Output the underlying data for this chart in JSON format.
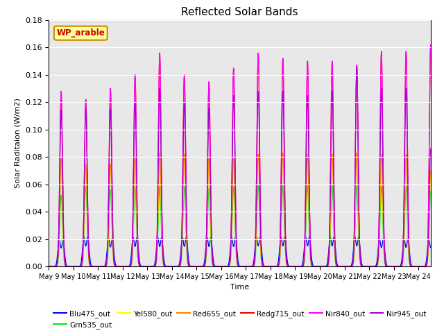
{
  "title": "Reflected Solar Bands",
  "xlabel": "Time",
  "ylabel": "Solar Raditaion (W/m2)",
  "ylim": [
    0,
    0.18
  ],
  "annotation_text": "WP_arable",
  "annotation_bg": "#ffff99",
  "annotation_border": "#cc8800",
  "num_days": 16,
  "sigma": 0.055,
  "series": [
    {
      "label": "Blu475_out",
      "color": "#0000ff",
      "peaks": [
        0.035,
        0.039,
        0.037,
        0.038,
        0.038,
        0.038,
        0.038,
        0.038,
        0.039,
        0.039,
        0.039,
        0.039,
        0.039,
        0.036,
        0.036,
        0.036
      ],
      "double_hump": true
    },
    {
      "label": "Grn535_out",
      "color": "#00ee00",
      "peaks": [
        0.052,
        0.058,
        0.056,
        0.058,
        0.058,
        0.058,
        0.057,
        0.058,
        0.059,
        0.059,
        0.059,
        0.059,
        0.059,
        0.058,
        0.058,
        0.055
      ],
      "double_hump": false
    },
    {
      "label": "Yel580_out",
      "color": "#ffff00",
      "peaks": [
        0.075,
        0.073,
        0.072,
        0.08,
        0.083,
        0.082,
        0.079,
        0.08,
        0.082,
        0.083,
        0.082,
        0.082,
        0.083,
        0.08,
        0.08,
        0.065
      ],
      "double_hump": false
    },
    {
      "label": "Red655_out",
      "color": "#ff8800",
      "peaks": [
        0.079,
        0.075,
        0.075,
        0.08,
        0.083,
        0.082,
        0.079,
        0.079,
        0.082,
        0.083,
        0.082,
        0.082,
        0.083,
        0.082,
        0.082,
        0.07
      ],
      "double_hump": false
    },
    {
      "label": "Redg715_out",
      "color": "#ee0000",
      "peaks": [
        0.128,
        0.122,
        0.13,
        0.14,
        0.156,
        0.14,
        0.135,
        0.145,
        0.156,
        0.152,
        0.15,
        0.15,
        0.147,
        0.157,
        0.157,
        0.162
      ],
      "double_hump": false
    },
    {
      "label": "Nir840_out",
      "color": "#ff00ff",
      "peaks": [
        0.128,
        0.122,
        0.13,
        0.14,
        0.156,
        0.14,
        0.135,
        0.145,
        0.156,
        0.152,
        0.15,
        0.15,
        0.147,
        0.157,
        0.157,
        0.162
      ],
      "double_hump": false
    },
    {
      "label": "Nir945_out",
      "color": "#aa00cc",
      "peaks": [
        0.114,
        0.115,
        0.115,
        0.12,
        0.13,
        0.12,
        0.116,
        0.125,
        0.128,
        0.128,
        0.125,
        0.128,
        0.146,
        0.13,
        0.13,
        0.086
      ],
      "double_hump": false
    }
  ],
  "bg_color": "#e8e8e8",
  "fig_bg": "#ffffff",
  "grid_color": "#ffffff",
  "tick_labels": [
    "May 9",
    "May 10",
    "May 11",
    "May 12",
    "May 13",
    "May 14",
    "May 15",
    "May 16",
    "May 17",
    "May 18",
    "May 19",
    "May 20",
    "May 21",
    "May 22",
    "May 23",
    "May 24"
  ]
}
